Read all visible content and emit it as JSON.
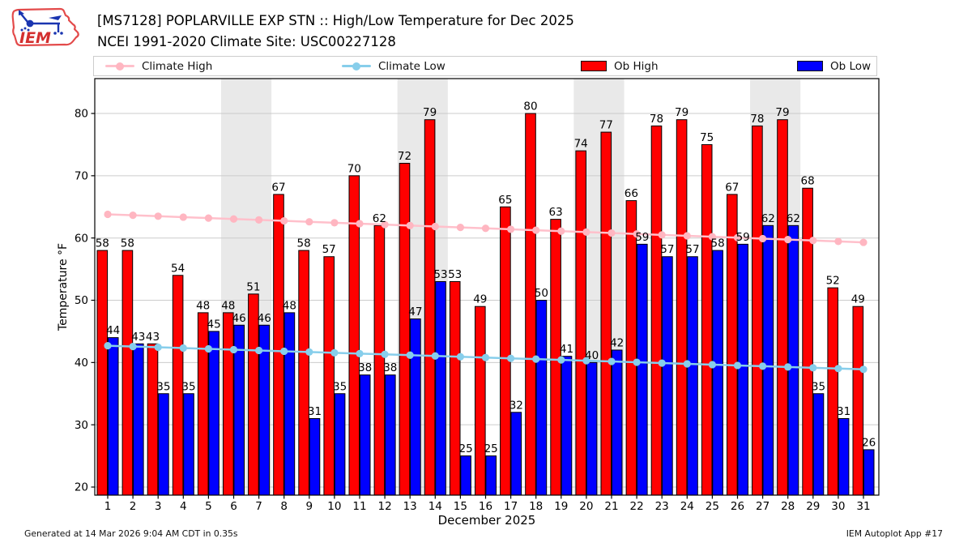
{
  "header": {
    "title_line1": "[MS7128] POPLARVILLE EXP STN :: High/Low Temperature for Dec 2025",
    "title_line2": "NCEI 1991-2020 Climate Site: USC00227128",
    "logo_text": "IEM"
  },
  "legend": {
    "items": [
      {
        "label": "Climate High",
        "type": "line",
        "color": "#ffc0cb",
        "marker_color": "#ffb6c1"
      },
      {
        "label": "Climate Low",
        "type": "line",
        "color": "#87ceeb",
        "marker_color": "#87ceeb"
      },
      {
        "label": "Ob High",
        "type": "patch",
        "color": "#ff0000"
      },
      {
        "label": "Ob Low",
        "type": "patch",
        "color": "#0000ff"
      }
    ]
  },
  "chart_data": {
    "type": "bar",
    "title": "[MS7128] POPLARVILLE EXP STN :: High/Low Temperature for Dec 2025",
    "subtitle": "NCEI 1991-2020 Climate Site: USC00227128",
    "xlabel": "December 2025",
    "ylabel": "Temperature °F",
    "x": [
      1,
      2,
      3,
      4,
      5,
      6,
      7,
      8,
      9,
      10,
      11,
      12,
      13,
      14,
      15,
      16,
      17,
      18,
      19,
      20,
      21,
      22,
      23,
      24,
      25,
      26,
      27,
      28,
      29,
      30,
      31
    ],
    "yticks": [
      20,
      30,
      40,
      50,
      60,
      70,
      80
    ],
    "ylim": [
      18.7,
      85.6
    ],
    "grid": true,
    "legend_position": "top",
    "weekend_bands": [
      [
        5.5,
        7.5
      ],
      [
        12.5,
        14.5
      ],
      [
        19.5,
        21.5
      ],
      [
        26.5,
        28.5
      ]
    ],
    "band_color": "#e9e9e9",
    "grid_color": "#cccccc",
    "series": [
      {
        "name": "Ob High",
        "type": "bar",
        "color": "#ff0000",
        "edge": "#000000",
        "values": [
          58,
          58,
          43,
          54,
          48,
          48,
          51,
          67,
          58,
          57,
          70,
          62,
          72,
          79,
          53,
          49,
          65,
          80,
          63,
          74,
          77,
          66,
          78,
          79,
          75,
          67,
          78,
          79,
          68,
          52,
          49
        ]
      },
      {
        "name": "Ob Low",
        "type": "bar",
        "color": "#0000ff",
        "edge": "#000000",
        "values": [
          44,
          43,
          35,
          35,
          45,
          46,
          46,
          48,
          31,
          35,
          38,
          38,
          47,
          53,
          25,
          25,
          32,
          50,
          41,
          40,
          42,
          59,
          57,
          57,
          58,
          59,
          62,
          62,
          35,
          31,
          26
        ]
      },
      {
        "name": "Climate High",
        "type": "line",
        "color": "#ffc0cb",
        "marker_color": "#ffb6c1",
        "values": [
          63.8,
          63.65,
          63.5,
          63.35,
          63.2,
          63.05,
          62.9,
          62.75,
          62.6,
          62.45,
          62.3,
          62.15,
          62.0,
          61.85,
          61.7,
          61.55,
          61.4,
          61.25,
          61.1,
          60.95,
          60.8,
          60.65,
          60.5,
          60.35,
          60.2,
          60.05,
          59.9,
          59.75,
          59.6,
          59.45,
          59.3
        ]
      },
      {
        "name": "Climate Low",
        "type": "line",
        "color": "#87ceeb",
        "marker_color": "#87ceeb",
        "values": [
          42.7,
          42.57,
          42.45,
          42.32,
          42.19,
          42.07,
          41.94,
          41.81,
          41.69,
          41.56,
          41.43,
          41.31,
          41.18,
          41.05,
          40.93,
          40.8,
          40.67,
          40.55,
          40.42,
          40.29,
          40.17,
          40.04,
          39.91,
          39.79,
          39.66,
          39.53,
          39.41,
          39.28,
          39.15,
          39.03,
          38.9
        ]
      }
    ]
  },
  "footer": {
    "left": "Generated at 14 Mar 2026 9:04 AM CDT in 0.35s",
    "right": "IEM Autoplot App #17"
  }
}
